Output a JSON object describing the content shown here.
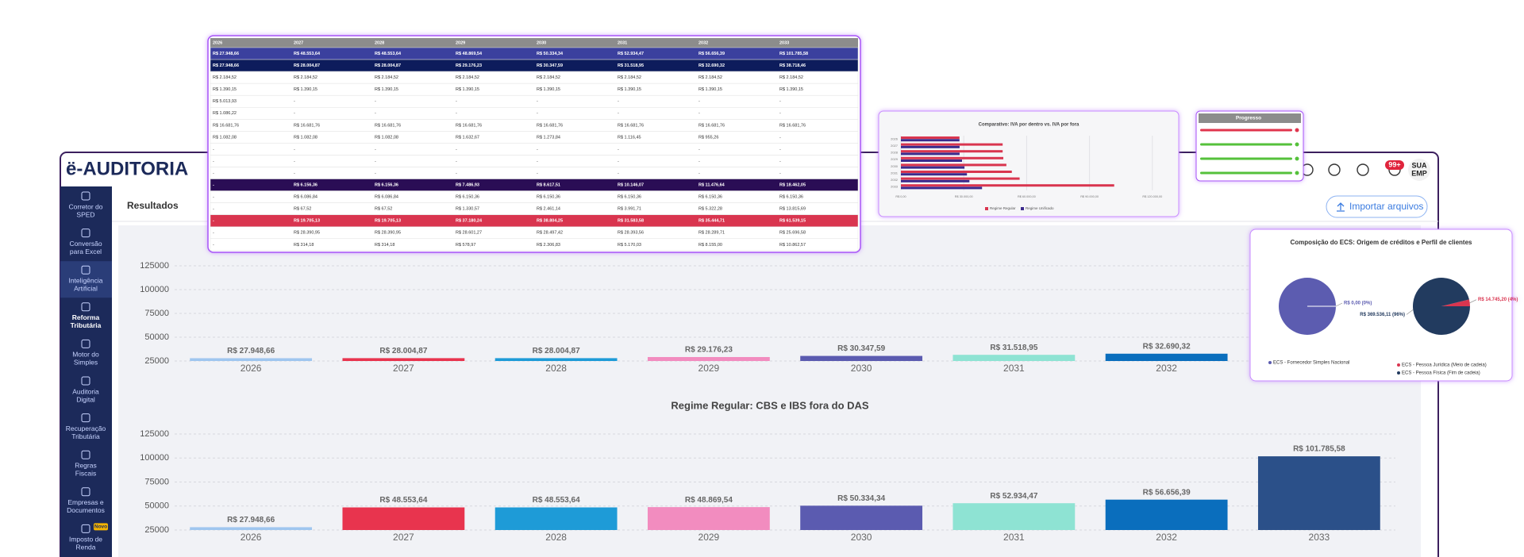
{
  "header": {
    "logo": "ë-AUDITORIA",
    "badge": "99+",
    "avatar": [
      "SUA",
      "EMP"
    ]
  },
  "sidebar": {
    "items": [
      {
        "lines": [
          "Corretor do",
          "SPED"
        ]
      },
      {
        "lines": [
          "Conversão",
          "para Excel"
        ]
      },
      {
        "lines": [
          "Inteligência",
          "Artificial"
        ]
      },
      {
        "lines": [
          "Reforma",
          "Tributária"
        ]
      },
      {
        "lines": [
          "Motor do",
          "Simples"
        ]
      },
      {
        "lines": [
          "Auditoria",
          "Digital"
        ]
      },
      {
        "lines": [
          "Recuperação",
          "Tributária"
        ]
      },
      {
        "lines": [
          "Regras",
          "Fiscais"
        ]
      },
      {
        "lines": [
          "Empresas e",
          "Documentos"
        ]
      },
      {
        "lines": [
          "Imposto de",
          "Renda"
        ],
        "badge": "Novo"
      }
    ]
  },
  "tab": "Resultados",
  "button": "Importar arquivos",
  "table": {
    "header": [
      "2026",
      "2027",
      "2028",
      "2029",
      "2030",
      "2031",
      "2032",
      "2033"
    ],
    "rows": [
      [
        "R$ 27.948,66",
        "R$ 48.553,64",
        "R$ 48.553,64",
        "R$ 48.869,54",
        "R$ 50.334,34",
        "R$ 52.934,47",
        "R$ 56.656,39",
        "R$ 101.785,58"
      ],
      [
        "R$ 27.948,66",
        "R$ 28.004,87",
        "R$ 28.004,87",
        "R$ 29.176,23",
        "R$ 30.347,59",
        "R$ 31.518,95",
        "R$ 32.690,32",
        "R$ 38.718,46"
      ],
      [
        "R$ 2.184,52",
        "R$ 2.184,52",
        "R$ 2.184,52",
        "R$ 2.184,52",
        "R$ 2.184,52",
        "R$ 2.184,52",
        "R$ 2.184,52",
        "R$ 2.184,52"
      ],
      [
        "R$ 1.390,15",
        "R$ 1.390,15",
        "R$ 1.390,15",
        "R$ 1.390,15",
        "R$ 1.390,15",
        "R$ 1.390,15",
        "R$ 1.390,15",
        "R$ 1.390,15"
      ],
      [
        "R$ 5.013,93",
        "-",
        "-",
        "-",
        "-",
        "-",
        "-",
        "-"
      ],
      [
        "R$ 1.086,22",
        "-",
        "-",
        "-",
        "-",
        "-",
        "-",
        "-"
      ],
      [
        "R$ 16.681,76",
        "R$ 16.681,76",
        "R$ 16.681,76",
        "R$ 16.681,76",
        "R$ 16.681,76",
        "R$ 16.681,76",
        "R$ 16.681,76",
        "R$ 16.681,76"
      ],
      [
        "R$ 1.082,08",
        "R$ 1.082,08",
        "R$ 1.082,08",
        "R$ 1.632,67",
        "R$ 1.273,84",
        "R$ 1.116,45",
        "R$ 955,26",
        "-"
      ],
      [
        "-",
        "-",
        "-",
        "-",
        "-",
        "-",
        "-",
        "-"
      ],
      [
        "-",
        "-",
        "-",
        "-",
        "-",
        "-",
        "-",
        "-"
      ],
      [
        "-",
        "-",
        "-",
        "-",
        "-",
        "-",
        "-",
        "-"
      ],
      [
        "-",
        "R$ 6.156,36",
        "R$ 6.156,36",
        "R$ 7.486,93",
        "R$ 8.617,51",
        "R$ 10.146,07",
        "R$ 11.476,64",
        "R$ 18.462,05"
      ],
      [
        "-",
        "R$ 6.086,84",
        "R$ 6.086,84",
        "R$ 6.150,36",
        "R$ 6.150,36",
        "R$ 6.150,36",
        "R$ 6.150,36",
        "R$ 6.150,36"
      ],
      [
        "-",
        "R$ 67,52",
        "R$ 67,52",
        "R$ 1.330,57",
        "R$ 2.461,14",
        "R$ 3.991,71",
        "R$ 5.322,28",
        "R$ 13.815,69"
      ],
      [
        "-",
        "R$ 19.705,13",
        "R$ 19.705,13",
        "R$ 37.180,24",
        "R$ 38.804,25",
        "R$ 31.583,58",
        "R$ 35.444,71",
        "R$ 61.539,15"
      ],
      [
        "-",
        "R$ 28.390,95",
        "R$ 28.390,95",
        "R$ 28.601,27",
        "R$ 28.497,42",
        "R$ 28.393,56",
        "R$ 28.289,71",
        "R$ 25.696,58"
      ],
      [
        "-",
        "R$ 314,18",
        "R$ 314,18",
        "R$ 578,97",
        "R$ 2.306,83",
        "R$ 5.170,03",
        "R$ 8.155,00",
        "R$ 10.862,57"
      ]
    ]
  },
  "progress": {
    "title": "Progresso"
  },
  "chart_data": [
    {
      "type": "bar",
      "categories": [
        "2026",
        "2027",
        "2028",
        "2029",
        "2030",
        "2031",
        "2032"
      ],
      "values": [
        27948.66,
        28004.87,
        28004.87,
        29176.23,
        30347.59,
        31518.95,
        32690.32
      ],
      "value_labels": [
        "R$ 27.948,66",
        "R$ 28.004,87",
        "R$ 28.004,87",
        "R$ 29.176,23",
        "R$ 30.347,59",
        "R$ 31.518,95",
        "R$ 32.690,32"
      ],
      "colors": [
        "#9fc6ef",
        "#e8344e",
        "#1e9bd7",
        "#f28cbf",
        "#5b5bb0",
        "#8ee3d3",
        "#0a6ebd"
      ],
      "ylim": [
        25000,
        125000
      ],
      "yticks": [
        125000,
        100000,
        75000,
        50000,
        25000
      ],
      "grid": true
    },
    {
      "type": "bar",
      "title": "Regime Regular: CBS e IBS fora do DAS",
      "categories": [
        "2026",
        "2027",
        "2028",
        "2029",
        "2030",
        "2031",
        "2032",
        "2033"
      ],
      "values": [
        27948.66,
        48553.64,
        48553.64,
        48869.54,
        50334.34,
        52934.47,
        56656.39,
        101785.58
      ],
      "value_labels": [
        "R$ 27.948,66",
        "R$ 48.553,64",
        "R$ 48.553,64",
        "R$ 48.869,54",
        "R$ 50.334,34",
        "R$ 52.934,47",
        "R$ 56.656,39",
        "R$ 101.785,58"
      ],
      "colors": [
        "#9fc6ef",
        "#e8344e",
        "#1e9bd7",
        "#f28cbf",
        "#5b5bb0",
        "#8ee3d3",
        "#0a6ebd",
        "#2b5089"
      ],
      "ylim": [
        25000,
        125000
      ],
      "yticks": [
        125000,
        100000,
        75000,
        50000,
        25000
      ],
      "grid": true
    },
    {
      "type": "barh",
      "title": "Comparativo: IVA por dentro vs. IVA por fora",
      "categories": [
        "2026",
        "2027",
        "2028",
        "2029",
        "2030",
        "2031",
        "2032",
        "2033"
      ],
      "series": [
        {
          "name": "Regime Regular",
          "color": "#d9344f",
          "values": [
            27948.66,
            48553.64,
            48553.64,
            48869.54,
            50334.34,
            52934.47,
            56656.39,
            101785.58
          ]
        },
        {
          "name": "Regime Unificado",
          "color": "#3a2a8c",
          "values": [
            27948.66,
            28004.87,
            28004.87,
            29176.23,
            30347.59,
            31518.95,
            32690.32,
            38718.46
          ]
        }
      ],
      "xlim": [
        0,
        125000
      ],
      "xticks": [
        {
          "value": 0,
          "label": "R$ 0,00"
        },
        {
          "value": 30000,
          "label": "R$ 30.000,00"
        },
        {
          "value": 60000,
          "label": "R$ 60.000,00"
        },
        {
          "value": 90000,
          "label": "R$ 90.000,00"
        },
        {
          "value": 120000,
          "label": "R$ 120.000,00"
        }
      ]
    },
    {
      "type": "pie",
      "title": "Composição do ECS: Origem de créditos e Perfil de clientes",
      "pies": [
        {
          "series": [
            {
              "name": "ECS - Fornecedor Simples Nacional",
              "color": "#5b5bb0",
              "value": 0,
              "value_label": "R$ 0,00 (0%)"
            }
          ]
        },
        {
          "series": [
            {
              "name": "ECS - Pessoa Jurídica (Meio de cadeia)",
              "color": "#d9344f",
              "value": 14745.2,
              "value_label": "R$ 14.745,20 (4%)"
            },
            {
              "name": "ECS - Pessoa Física (Fim de cadeia)",
              "color": "#233a5e",
              "value": 369536.11,
              "value_label": "R$ 369.536,11 (96%)"
            }
          ]
        }
      ]
    }
  ]
}
